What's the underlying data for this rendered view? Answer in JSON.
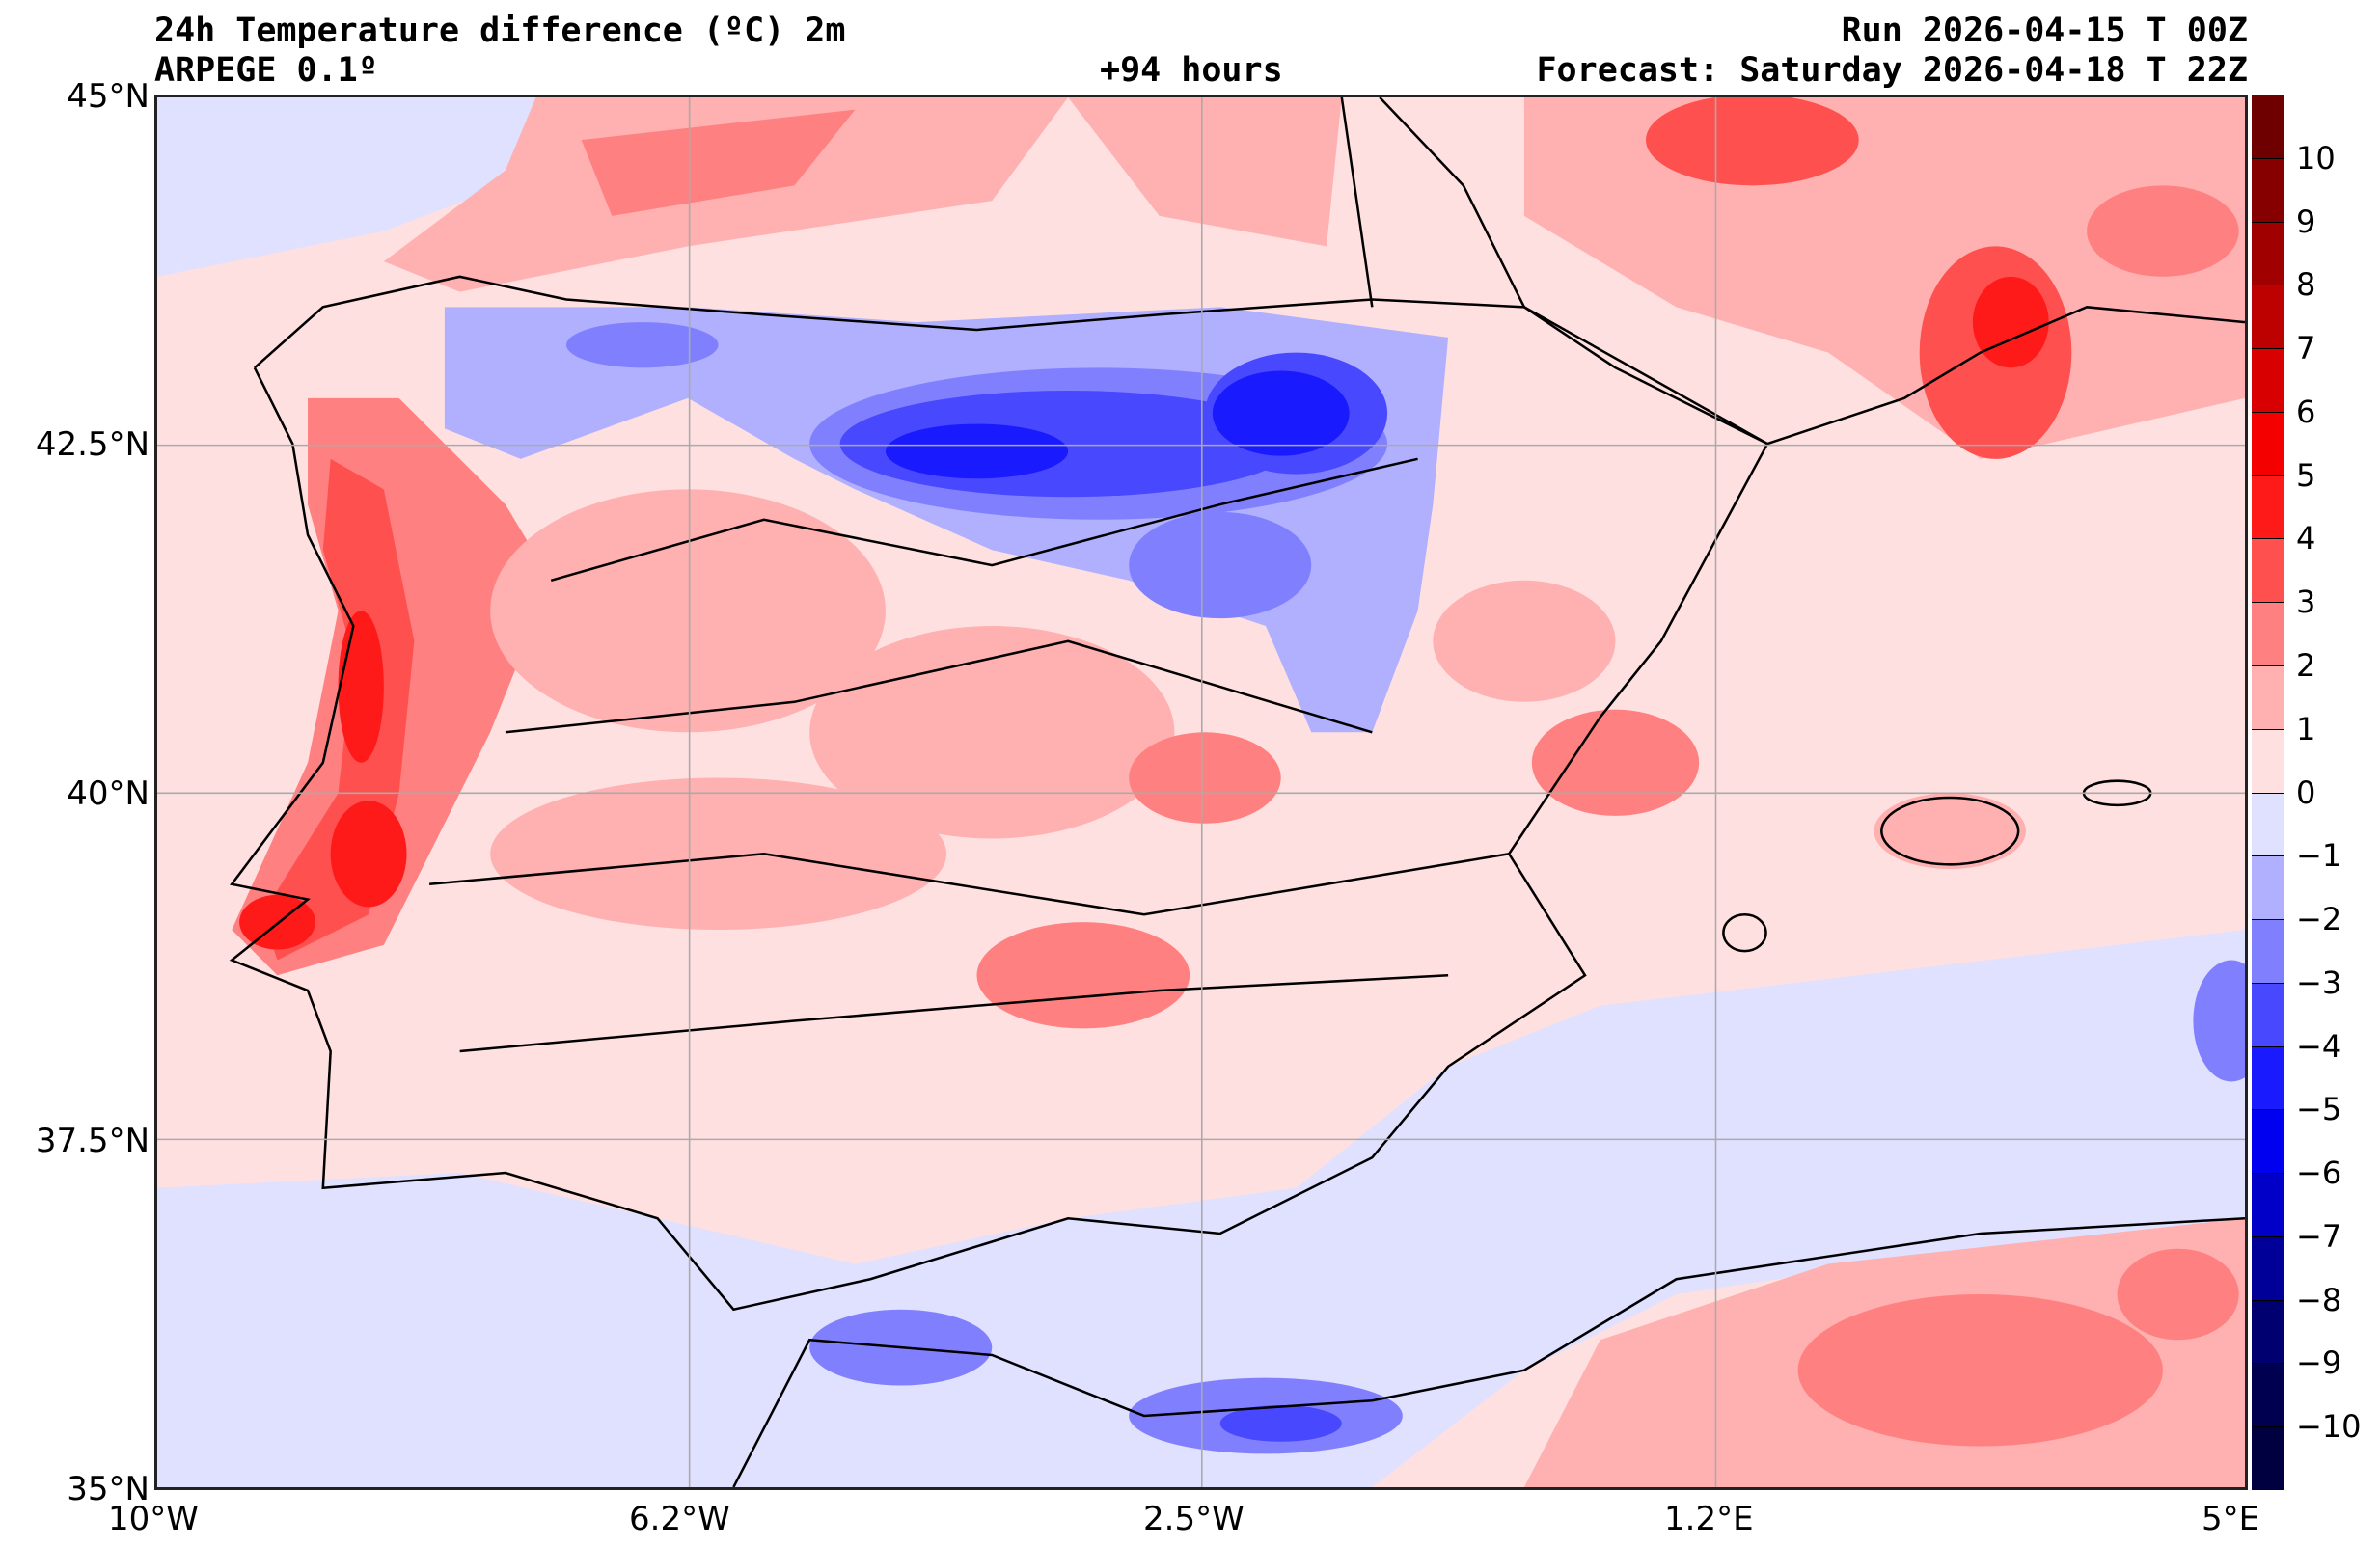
{
  "header": {
    "title": "24h Temperature difference (ºC) 2m",
    "model": "ARPEGE 0.1º",
    "lead_time": "+94 hours",
    "run": "Run 2026-04-15 T 00Z",
    "forecast": "Forecast: Saturday 2026-04-18 T 22Z"
  },
  "axes": {
    "lon_labels": [
      "10°W",
      "6.2°W",
      "2.5°W",
      "1.2°E",
      "5°E"
    ],
    "lat_labels": [
      "45°N",
      "42.5°N",
      "40°N",
      "37.5°N",
      "35°N"
    ]
  },
  "colorbar": {
    "ticks": [
      "10",
      "9",
      "8",
      "7",
      "6",
      "5",
      "4",
      "3",
      "2",
      "1",
      "0",
      "−1",
      "−2",
      "−3",
      "−4",
      "−5",
      "−6",
      "−7",
      "−8",
      "−9",
      "−10"
    ],
    "colors": [
      "#6f0000",
      "#860000",
      "#a10000",
      "#bd0000",
      "#d80000",
      "#f40000",
      "#ff1a1a",
      "#ff5050",
      "#ff8080",
      "#ffb0b0",
      "#ffe0e0",
      "#e0e0ff",
      "#b0b0ff",
      "#8080ff",
      "#4848ff",
      "#1a1aff",
      "#0000f0",
      "#0000c8",
      "#000098",
      "#000070",
      "#000050",
      "#000040"
    ]
  }
}
